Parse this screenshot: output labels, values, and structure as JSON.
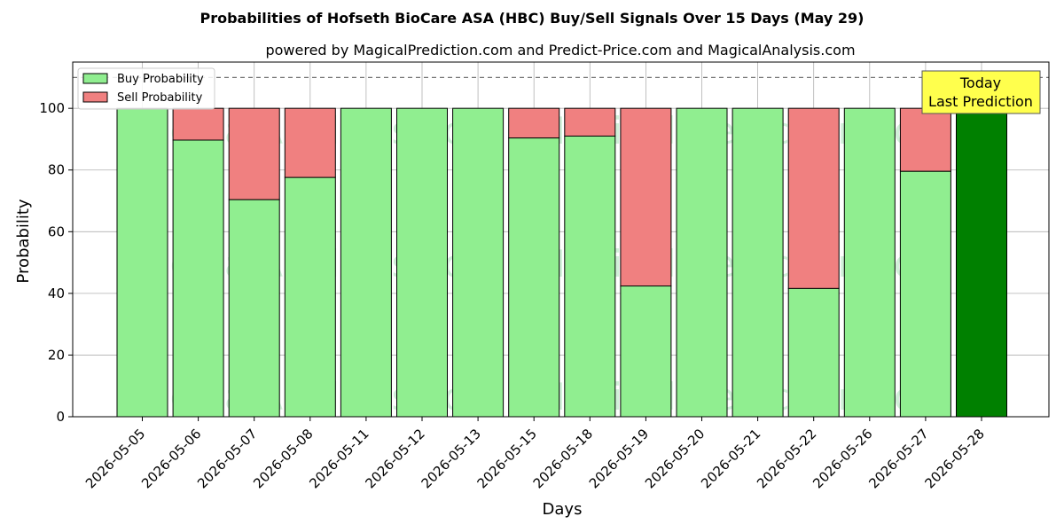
{
  "chart_data": {
    "type": "bar",
    "stacked": true,
    "title": "Probabilities of Hofseth BioCare ASA (HBC) Buy/Sell Signals Over 15 Days (May 29)",
    "subtitle": "powered by MagicalPrediction.com and Predict-Price.com and MagicalAnalysis.com",
    "xlabel": "Days",
    "ylabel": "Probability",
    "ylim": [
      0,
      115
    ],
    "yticks": [
      0,
      20,
      40,
      60,
      80,
      100
    ],
    "grid": true,
    "legend_position": "top-left",
    "categories": [
      "2026-05-05",
      "2026-05-06",
      "2026-05-07",
      "2026-05-08",
      "2026-05-11",
      "2026-05-12",
      "2026-05-13",
      "2026-05-15",
      "2026-05-18",
      "2026-05-19",
      "2026-05-20",
      "2026-05-21",
      "2026-05-22",
      "2026-05-26",
      "2026-05-27",
      "2026-05-28"
    ],
    "series": [
      {
        "name": "Buy Probability",
        "color": "#90ee90",
        "values": [
          100,
          89.7,
          70.4,
          77.6,
          100,
          100,
          100,
          90.4,
          91.0,
          42.4,
          100,
          100,
          41.6,
          100,
          79.6,
          100
        ]
      },
      {
        "name": "Sell Probability",
        "color": "#f08080",
        "values": [
          0,
          10.3,
          29.6,
          22.4,
          0,
          0,
          0,
          9.6,
          9.0,
          57.6,
          0,
          0,
          58.4,
          0,
          20.4,
          0
        ]
      }
    ],
    "highlight": {
      "index": 15,
      "color": "#008000"
    },
    "reference_line": {
      "y": 110,
      "style": "dashed"
    },
    "annotation": {
      "lines": [
        "Today",
        "Last Prediction"
      ],
      "background": "#ffff4d"
    },
    "watermarks": [
      "MagicalAnalysis.com",
      "MagicalPrediction.com"
    ]
  }
}
